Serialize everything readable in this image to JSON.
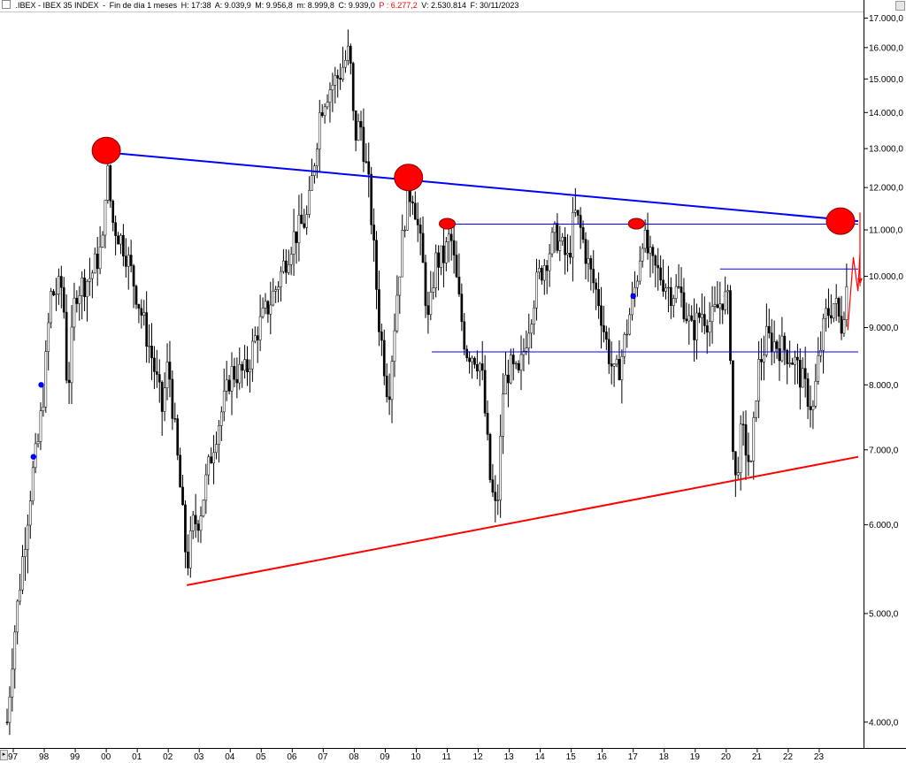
{
  "header": {
    "symbol": ".IBEX - IBEX 35 INDEX",
    "period": "Fin de día 1 meses",
    "hour": "H: 17:38",
    "open": "A: 9.039,9",
    "high": "M: 9.956,8",
    "low": "m: 8.999,8",
    "close": "C: 9.939,0",
    "points": "P : 6.277,2",
    "volume": "V: 2.530.814",
    "date": "F: 30/11/2023"
  },
  "chart_data": {
    "type": "candlestick",
    "scale": "log",
    "ylim": [
      3800,
      17200
    ],
    "y_ticks": [
      4000,
      5000,
      6000,
      7000,
      8000,
      9000,
      10000,
      11000,
      12000,
      13000,
      14000,
      15000,
      16000,
      17000
    ],
    "y_tick_labels": [
      "4.000,0",
      "5.000,0",
      "6.000,0",
      "7.000,0",
      "8.000,0",
      "9.000,0",
      "10.000,0",
      "11.000,0",
      "12.000,0",
      "13.000,0",
      "14.000,0",
      "15.000,0",
      "16.000,0",
      "17.000,0"
    ],
    "x_range": [
      1996.8,
      2025.0
    ],
    "x_ticks": [
      1997,
      1998,
      1999,
      2000,
      2001,
      2002,
      2003,
      2004,
      2005,
      2006,
      2007,
      2008,
      2009,
      2010,
      2011,
      2012,
      2013,
      2014,
      2015,
      2016,
      2017,
      2018,
      2019,
      2020,
      2021,
      2022,
      2023
    ],
    "x_tick_labels": [
      "97",
      "98",
      "99",
      "00",
      "01",
      "02",
      "03",
      "04",
      "05",
      "06",
      "07",
      "08",
      "09",
      "10",
      "11",
      "12",
      "13",
      "14",
      "15",
      "16",
      "17",
      "18",
      "19",
      "20",
      "21",
      "22",
      "23"
    ],
    "price_path": [
      [
        1996.8,
        4000
      ],
      [
        1997.0,
        4700
      ],
      [
        1997.3,
        5600
      ],
      [
        1997.6,
        6600
      ],
      [
        1997.8,
        7100
      ],
      [
        1998.0,
        8000
      ],
      [
        1998.2,
        9600
      ],
      [
        1998.6,
        9800
      ],
      [
        1998.75,
        7800
      ],
      [
        1999.0,
        9700
      ],
      [
        1999.5,
        10000
      ],
      [
        1999.9,
        10700
      ],
      [
        2000.0,
        12700
      ],
      [
        2000.2,
        11200
      ],
      [
        2000.6,
        10600
      ],
      [
        2001.0,
        9600
      ],
      [
        2001.5,
        8400
      ],
      [
        2001.8,
        7600
      ],
      [
        2002.0,
        8400
      ],
      [
        2002.4,
        6400
      ],
      [
        2002.6,
        5500
      ],
      [
        2002.8,
        6000
      ],
      [
        2003.0,
        6100
      ],
      [
        2003.5,
        7200
      ],
      [
        2003.9,
        7900
      ],
      [
        2004.0,
        8200
      ],
      [
        2004.5,
        8200
      ],
      [
        2004.9,
        9000
      ],
      [
        2005.0,
        9100
      ],
      [
        2005.5,
        9800
      ],
      [
        2006.0,
        10800
      ],
      [
        2006.5,
        11300
      ],
      [
        2006.9,
        14100
      ],
      [
        2007.1,
        14600
      ],
      [
        2007.5,
        15100
      ],
      [
        2007.85,
        15900
      ],
      [
        2008.0,
        13300
      ],
      [
        2008.2,
        13700
      ],
      [
        2008.5,
        11800
      ],
      [
        2008.8,
        9100
      ],
      [
        2009.1,
        7800
      ],
      [
        2009.4,
        9800
      ],
      [
        2009.7,
        11800
      ],
      [
        2009.9,
        11900
      ],
      [
        2010.2,
        10300
      ],
      [
        2010.4,
        9000
      ],
      [
        2010.6,
        10300
      ],
      [
        2010.9,
        10400
      ],
      [
        2011.1,
        10900
      ],
      [
        2011.4,
        9400
      ],
      [
        2011.6,
        8600
      ],
      [
        2011.9,
        8500
      ],
      [
        2012.1,
        8300
      ],
      [
        2012.4,
        6500
      ],
      [
        2012.6,
        6100
      ],
      [
        2012.8,
        7900
      ],
      [
        2013.0,
        8300
      ],
      [
        2013.3,
        8100
      ],
      [
        2013.6,
        9000
      ],
      [
        2013.9,
        9900
      ],
      [
        2014.2,
        10400
      ],
      [
        2014.5,
        10900
      ],
      [
        2014.9,
        10300
      ],
      [
        2015.1,
        11400
      ],
      [
        2015.3,
        11000
      ],
      [
        2015.6,
        10100
      ],
      [
        2015.9,
        9500
      ],
      [
        2016.1,
        8800
      ],
      [
        2016.4,
        8100
      ],
      [
        2016.6,
        8400
      ],
      [
        2016.9,
        9300
      ],
      [
        2017.1,
        9900
      ],
      [
        2017.3,
        10900
      ],
      [
        2017.6,
        10200
      ],
      [
        2017.9,
        10000
      ],
      [
        2018.2,
        9700
      ],
      [
        2018.5,
        9700
      ],
      [
        2018.9,
        8900
      ],
      [
        2019.2,
        9300
      ],
      [
        2019.5,
        9100
      ],
      [
        2019.9,
        9600
      ],
      [
        2020.1,
        9400
      ],
      [
        2020.25,
        6400
      ],
      [
        2020.5,
        7300
      ],
      [
        2020.8,
        6700
      ],
      [
        2021.0,
        8200
      ],
      [
        2021.3,
        8800
      ],
      [
        2021.6,
        8700
      ],
      [
        2021.9,
        8600
      ],
      [
        2022.2,
        8400
      ],
      [
        2022.5,
        8000
      ],
      [
        2022.8,
        7600
      ],
      [
        2022.95,
        8300
      ],
      [
        2023.2,
        9200
      ],
      [
        2023.5,
        9500
      ],
      [
        2023.7,
        9000
      ],
      [
        2023.92,
        9939
      ]
    ],
    "trendlines": [
      {
        "color": "#0000ff",
        "from": [
          2000.0,
          12900
        ],
        "to": [
          2024.9,
          11200
        ]
      },
      {
        "color": "#ff0000",
        "from": [
          2002.6,
          5300
        ],
        "to": [
          2024.9,
          6900
        ]
      },
      {
        "color": "#0000ff",
        "from": [
          2010.9,
          11130
        ],
        "to": [
          2024.9,
          11130
        ]
      },
      {
        "color": "#0000ff",
        "from": [
          2010.5,
          8560
        ],
        "to": [
          2024.9,
          8560
        ]
      },
      {
        "color": "#0000ff",
        "from": [
          2019.8,
          10150
        ],
        "to": [
          2024.9,
          10150
        ]
      }
    ],
    "red_circles": [
      {
        "x": 2000.0,
        "y": 12950,
        "size": "large"
      },
      {
        "x": 2009.75,
        "y": 12250,
        "size": "large"
      },
      {
        "x": 2011.0,
        "y": 11140,
        "size": "small"
      },
      {
        "x": 2017.1,
        "y": 11140,
        "size": "small"
      },
      {
        "x": 2023.9,
        "y": 11150,
        "size": "small"
      },
      {
        "x": 2024.55,
        "y": 11200,
        "size": "large"
      }
    ],
    "blue_dots": [
      {
        "x": 1997.65,
        "y": 6900
      },
      {
        "x": 1997.9,
        "y": 8000
      },
      {
        "x": 2017.0,
        "y": 9600
      }
    ],
    "projection": [
      [
        2023.92,
        8950
      ],
      [
        2024.1,
        10400
      ],
      [
        2024.25,
        9700
      ],
      [
        2024.45,
        10500
      ],
      [
        2024.6,
        9800
      ],
      [
        2024.75,
        10900
      ],
      [
        2024.9,
        10200
      ],
      [
        2025.0,
        11400
      ],
      [
        2025.05,
        9850
      ]
    ]
  }
}
